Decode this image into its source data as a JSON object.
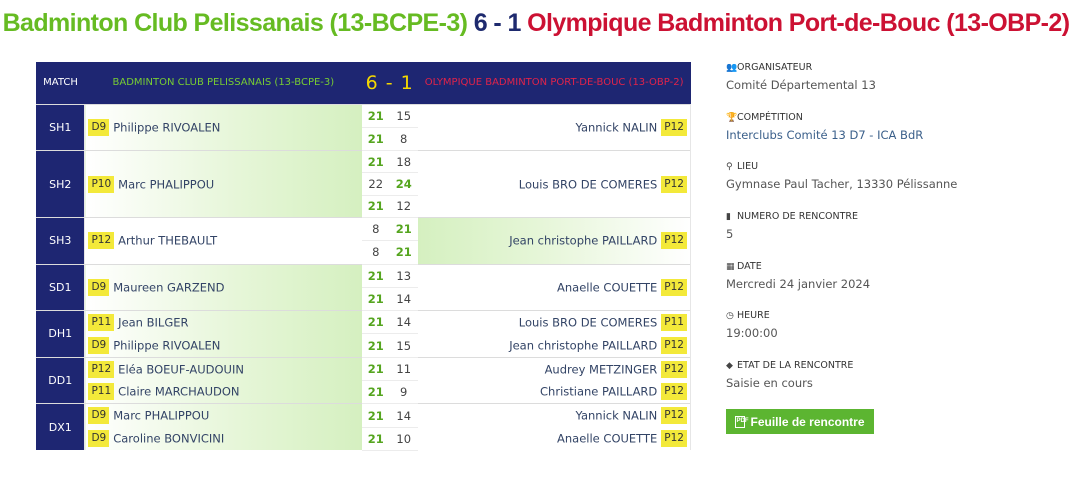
{
  "title": {
    "home": "Badminton Club Pelissanais (13-BCPE-3)",
    "score": "6 - 1",
    "away": "Olympique Badminton Port-de-Bouc (13-OBP-2)"
  },
  "table_header": {
    "match": "MATCH",
    "home": "BADMINTON CLUB PELISSANAIS (13-BCPE-3)",
    "score": "6 - 1",
    "away": "OLYMPIQUE BADMINTON PORT-DE-BOUC (13-OBP-2)"
  },
  "matches": [
    {
      "category": "SH1",
      "winner": "home",
      "home": [
        {
          "rank": "D9",
          "name": "Philippe RIVOALEN"
        }
      ],
      "away": [
        {
          "rank": "P12",
          "name": "Yannick NALIN"
        }
      ],
      "sets": [
        [
          "21",
          "15"
        ],
        [
          "21",
          "8"
        ]
      ]
    },
    {
      "category": "SH2",
      "winner": "home",
      "home": [
        {
          "rank": "P10",
          "name": "Marc PHALIPPOU"
        }
      ],
      "away": [
        {
          "rank": "P12",
          "name": "Louis BRO DE COMERES"
        }
      ],
      "sets": [
        [
          "21",
          "18"
        ],
        [
          "22",
          "24"
        ],
        [
          "21",
          "12"
        ]
      ]
    },
    {
      "category": "SH3",
      "winner": "away",
      "home": [
        {
          "rank": "P12",
          "name": "Arthur THEBAULT"
        }
      ],
      "away": [
        {
          "rank": "P12",
          "name": "Jean christophe PAILLARD"
        }
      ],
      "sets": [
        [
          "8",
          "21"
        ],
        [
          "8",
          "21"
        ]
      ]
    },
    {
      "category": "SD1",
      "winner": "home",
      "home": [
        {
          "rank": "D9",
          "name": "Maureen GARZEND"
        }
      ],
      "away": [
        {
          "rank": "P12",
          "name": "Anaelle COUETTE"
        }
      ],
      "sets": [
        [
          "21",
          "13"
        ],
        [
          "21",
          "14"
        ]
      ]
    },
    {
      "category": "DH1",
      "winner": "home",
      "home": [
        {
          "rank": "P11",
          "name": "Jean BILGER"
        },
        {
          "rank": "D9",
          "name": "Philippe RIVOALEN"
        }
      ],
      "away": [
        {
          "rank": "P11",
          "name": "Louis BRO DE COMERES"
        },
        {
          "rank": "P12",
          "name": "Jean christophe PAILLARD"
        }
      ],
      "sets": [
        [
          "21",
          "14"
        ],
        [
          "21",
          "15"
        ]
      ]
    },
    {
      "category": "DD1",
      "winner": "home",
      "home": [
        {
          "rank": "P12",
          "name": "Eléa BOEUF-AUDOUIN"
        },
        {
          "rank": "P11",
          "name": "Claire MARCHAUDON"
        }
      ],
      "away": [
        {
          "rank": "P12",
          "name": "Audrey METZINGER"
        },
        {
          "rank": "P12",
          "name": "Christiane PAILLARD"
        }
      ],
      "sets": [
        [
          "21",
          "11"
        ],
        [
          "21",
          "9"
        ]
      ]
    },
    {
      "category": "DX1",
      "winner": "home",
      "home": [
        {
          "rank": "D9",
          "name": "Marc PHALIPPOU"
        },
        {
          "rank": "D9",
          "name": "Caroline BONVICINI"
        }
      ],
      "away": [
        {
          "rank": "P12",
          "name": "Yannick NALIN"
        },
        {
          "rank": "P12",
          "name": "Anaelle COUETTE"
        }
      ],
      "sets": [
        [
          "21",
          "14"
        ],
        [
          "21",
          "10"
        ]
      ]
    }
  ],
  "info": [
    {
      "icon": "users-icon",
      "glyph": "👥",
      "label": "ORGANISATEUR",
      "value": "Comité Départemental 13",
      "link": false
    },
    {
      "icon": "trophy-icon",
      "glyph": "🏆",
      "label": "COMPÉTITION",
      "value": "Interclubs Comité 13 D7 - ICA BdR",
      "link": true
    },
    {
      "icon": "map-marker-icon",
      "glyph": "⚲",
      "label": "LIEU",
      "value": "Gymnase Paul Tacher, 13330 Pélissanne",
      "link": false
    },
    {
      "icon": "bookmark-icon",
      "glyph": "▮",
      "label": "NUMERO DE RENCONTRE",
      "value": "5",
      "link": false
    },
    {
      "icon": "calendar-icon",
      "glyph": "▦",
      "label": "DATE",
      "value": "Mercredi 24 janvier 2024",
      "link": false
    },
    {
      "icon": "clock-icon",
      "glyph": "◷",
      "label": "HEURE",
      "value": "19:00:00",
      "link": false
    },
    {
      "icon": "tag-icon",
      "glyph": "◆",
      "label": "ETAT DE LA RENCONTRE",
      "value": "Saisie en cours",
      "link": false
    }
  ],
  "sheet_button": {
    "label": "Feuille de rencontre",
    "icon": "file-pdf-icon"
  },
  "colors": {
    "header_navy": "#1e2672",
    "home_green": "#66bb22",
    "away_red": "#cc1133",
    "score_yellow": "#f5d800",
    "rank_badge": "#f3e93a",
    "button_green": "#5cb531"
  }
}
